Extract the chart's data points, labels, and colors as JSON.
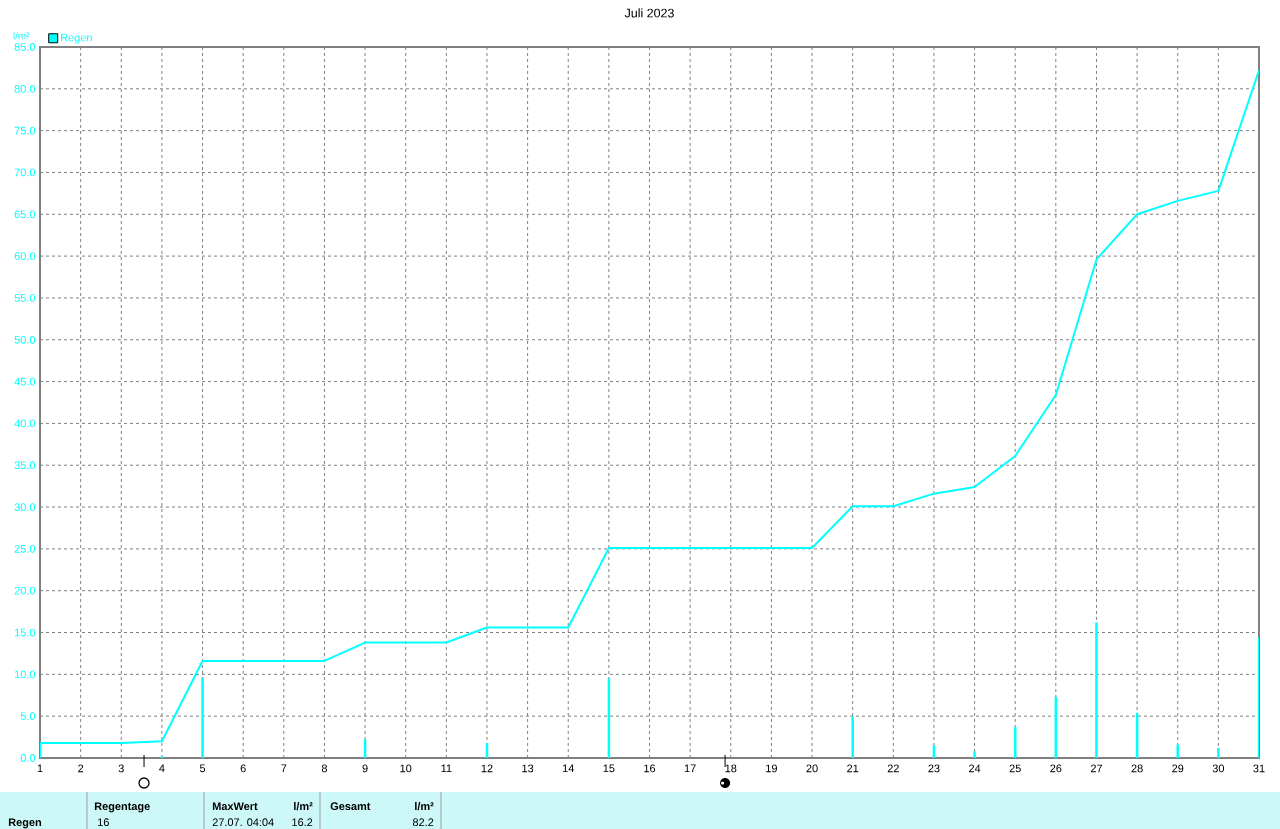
{
  "chart_data": {
    "type": "bar",
    "title": "Juli 2023",
    "ylabel": "l/m²",
    "x": [
      1,
      2,
      3,
      4,
      5,
      6,
      7,
      8,
      9,
      10,
      11,
      12,
      13,
      14,
      15,
      16,
      17,
      18,
      19,
      20,
      21,
      22,
      23,
      24,
      25,
      26,
      27,
      28,
      29,
      30,
      31
    ],
    "series": [
      {
        "name": "Regen",
        "color": "#00ffff",
        "values": [
          1.8,
          null,
          null,
          0.2,
          9.6,
          null,
          null,
          null,
          2.2,
          null,
          null,
          1.8,
          null,
          null,
          9.5,
          null,
          null,
          null,
          null,
          null,
          5.0,
          null,
          1.5,
          0.8,
          3.7,
          7.3,
          16.2,
          5.4,
          1.6,
          1.2,
          14.4
        ]
      },
      {
        "type": "line",
        "color": "#00ffff",
        "values": [
          1.8,
          1.8,
          1.8,
          2.0,
          11.6,
          11.6,
          11.6,
          11.6,
          13.8,
          13.8,
          13.8,
          15.6,
          15.6,
          15.6,
          25.1,
          25.1,
          25.1,
          25.1,
          25.1,
          25.1,
          30.1,
          30.1,
          31.6,
          32.4,
          36.1,
          43.4,
          59.6,
          65.0,
          66.6,
          67.8,
          82.2
        ]
      }
    ],
    "xlim": [
      1,
      31
    ],
    "ylim": [
      0,
      85
    ],
    "xticks": [
      1,
      2,
      3,
      4,
      5,
      6,
      7,
      8,
      9,
      10,
      11,
      12,
      13,
      14,
      15,
      16,
      17,
      18,
      19,
      20,
      21,
      22,
      23,
      24,
      25,
      26,
      27,
      28,
      29,
      30,
      31
    ],
    "yticks": [
      {
        "value": 0,
        "label": "0.0"
      },
      {
        "value": 5,
        "label": "5.0"
      },
      {
        "value": 10,
        "label": "10.0"
      },
      {
        "value": 15,
        "label": "15.0"
      },
      {
        "value": 20,
        "label": "20.0"
      },
      {
        "value": 25,
        "label": "25.0"
      },
      {
        "value": 30,
        "label": "30.0"
      },
      {
        "value": 35,
        "label": "35.0"
      },
      {
        "value": 40,
        "label": "40.0"
      },
      {
        "value": 45,
        "label": "45.0"
      },
      {
        "value": 50,
        "label": "50.0"
      },
      {
        "value": 55,
        "label": "55.0"
      },
      {
        "value": 60,
        "label": "60.0"
      },
      {
        "value": 65,
        "label": "65.0"
      },
      {
        "value": 70,
        "label": "70.0"
      },
      {
        "value": 75,
        "label": "75.0"
      },
      {
        "value": 80,
        "label": "80.0"
      },
      {
        "value": 85,
        "label": "85.0"
      }
    ],
    "grid": true,
    "legend": "top left",
    "annotations": [
      "Regen",
      "Regentage",
      "16",
      "MaxWert",
      "l/m²",
      "27.07. 04:04",
      "16.2",
      "Gesamt",
      "l/m²",
      "82.2"
    ]
  }
}
